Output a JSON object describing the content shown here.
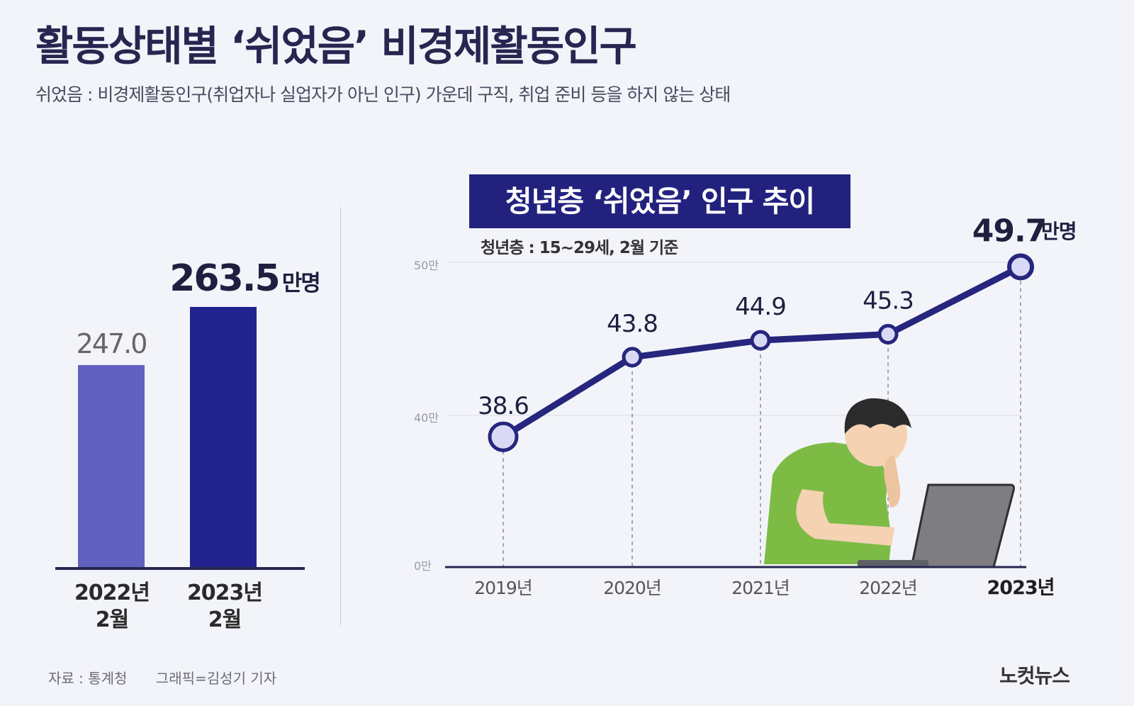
{
  "header": {
    "title": "활동상태별 ‘쉬었음’ 비경제활동인구",
    "subtitle": "쉬었음 : 비경제활동인구(취업자나 실업자가 아닌 인구) 가운데 구직, 취업 준비 등을 하지 않는 상태"
  },
  "left_chart": {
    "unit": "만명",
    "bars": [
      {
        "year": "2022년",
        "month": "2월",
        "value_label": "247.0"
      },
      {
        "year": "2023년",
        "month": "2월",
        "value_label": "263.5"
      }
    ]
  },
  "right_chart": {
    "title": "청년층 ‘쉬었음’ 인구 추이",
    "note": "청년층 : 15~29세, 2월 기준",
    "unit": "만명",
    "y_ticks": [
      "50만",
      "40만",
      "0만"
    ]
  },
  "footer": {
    "source": "자료 : 통계청",
    "graphic": "그래픽=김성기 기자",
    "logo": "노컷뉴스"
  },
  "colors": {
    "bar_2022": "#6161c0",
    "bar_2023": "#22228e",
    "line": "#26267e",
    "marker_fill": "#d9d9f5",
    "title_box": "#22227e"
  },
  "chart_data": [
    {
      "type": "bar",
      "categories": [
        "2022년 2월",
        "2023년 2월"
      ],
      "values": [
        247.0,
        263.5
      ],
      "unit": "만명"
    },
    {
      "type": "line",
      "title": "청년층 ‘쉬었음’ 인구 추이",
      "x": [
        "2019년",
        "2020년",
        "2021년",
        "2022년",
        "2023년"
      ],
      "y": [
        38.6,
        43.8,
        44.9,
        45.3,
        49.7
      ],
      "unit": "만명",
      "y_axis_break": true,
      "yticks": [
        0,
        40,
        50
      ]
    }
  ]
}
